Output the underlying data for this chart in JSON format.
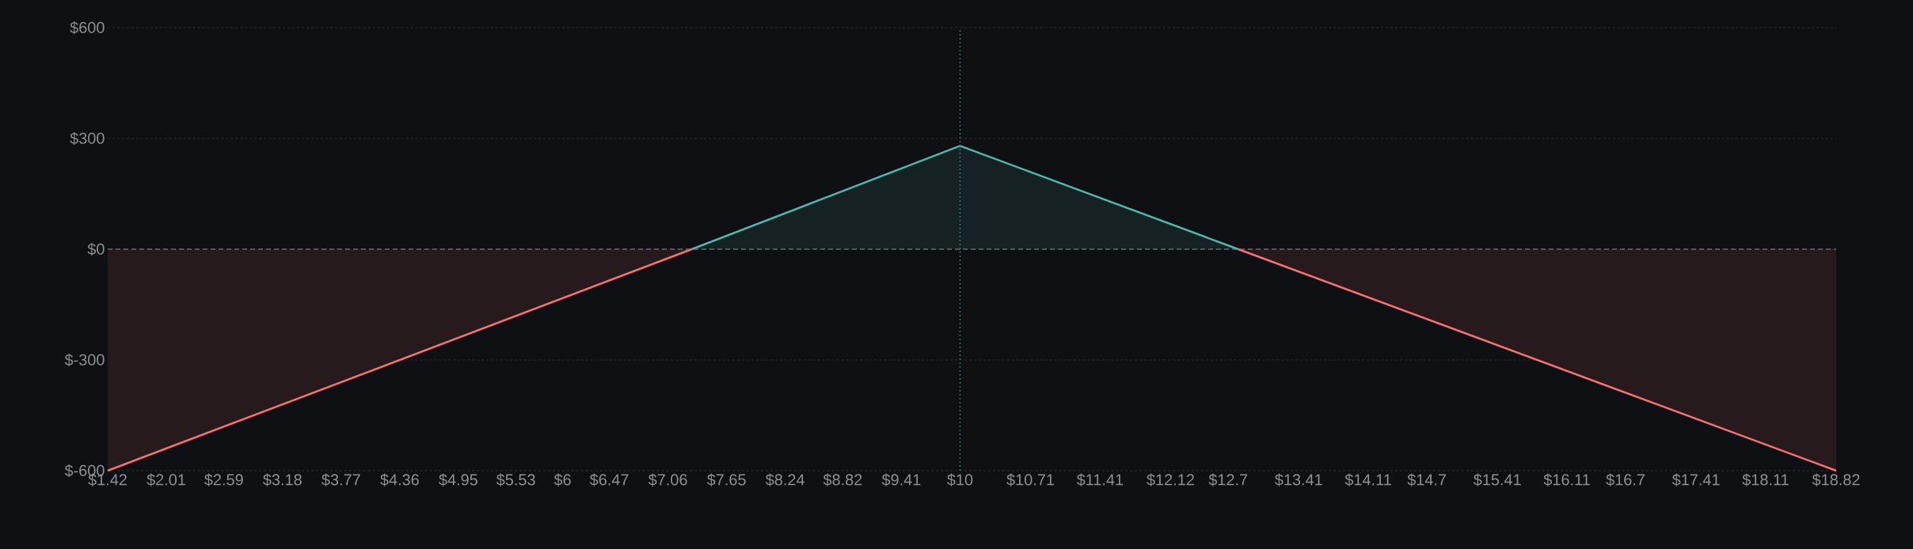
{
  "chart_data": {
    "type": "area",
    "series": [
      {
        "color": "#f87171",
        "x": [
          1.42,
          7.3
        ],
        "values": [
          -600,
          0
        ]
      },
      {
        "color": "#4fb8ad",
        "x": [
          7.3,
          10,
          12.8
        ],
        "values": [
          0,
          280,
          0
        ]
      },
      {
        "color": "#f87171",
        "x": [
          12.8,
          18.82
        ],
        "values": [
          0,
          -600
        ]
      }
    ],
    "xlim": [
      1.42,
      18.82
    ],
    "xticks": [
      {
        "value": 1.42,
        "label": "$1.42"
      },
      {
        "value": 2.01,
        "label": "$2.01"
      },
      {
        "value": 2.59,
        "label": "$2.59"
      },
      {
        "value": 3.18,
        "label": "$3.18"
      },
      {
        "value": 3.77,
        "label": "$3.77"
      },
      {
        "value": 4.36,
        "label": "$4.36"
      },
      {
        "value": 4.95,
        "label": "$4.95"
      },
      {
        "value": 5.53,
        "label": "$5.53"
      },
      {
        "value": 6,
        "label": "$6"
      },
      {
        "value": 6.47,
        "label": "$6.47"
      },
      {
        "value": 7.06,
        "label": "$7.06"
      },
      {
        "value": 7.65,
        "label": "$7.65"
      },
      {
        "value": 8.24,
        "label": "$8.24"
      },
      {
        "value": 8.82,
        "label": "$8.82"
      },
      {
        "value": 9.41,
        "label": "$9.41"
      },
      {
        "value": 10,
        "label": "$10"
      },
      {
        "value": 10.71,
        "label": "$10.71"
      },
      {
        "value": 11.41,
        "label": "$11.41"
      },
      {
        "value": 12.12,
        "label": "$12.12"
      },
      {
        "value": 12.7,
        "label": "$12.7"
      },
      {
        "value": 13.41,
        "label": "$13.41"
      },
      {
        "value": 14.11,
        "label": "$14.11"
      },
      {
        "value": 14.7,
        "label": "$14.7"
      },
      {
        "value": 15.41,
        "label": "$15.41"
      },
      {
        "value": 16.11,
        "label": "$16.11"
      },
      {
        "value": 16.7,
        "label": "$16.7"
      },
      {
        "value": 17.41,
        "label": "$17.41"
      },
      {
        "value": 18.11,
        "label": "$18.11"
      },
      {
        "value": 18.82,
        "label": "$18.82"
      }
    ],
    "ylim": [
      -600,
      600
    ],
    "yticks": [
      {
        "value": -600,
        "label": "$-600"
      },
      {
        "value": -300,
        "label": "$-300"
      },
      {
        "value": 0,
        "label": "$0"
      },
      {
        "value": 300,
        "label": "$300"
      },
      {
        "value": 600,
        "label": "$600"
      }
    ],
    "grid": "y",
    "ref_lines": [
      {
        "axis": "x",
        "value": 10,
        "color": "#4a7f86",
        "line_style": "dotted"
      },
      {
        "axis": "y",
        "value": 0,
        "color": "#8a8d94",
        "line_style": "dashed"
      }
    ]
  }
}
